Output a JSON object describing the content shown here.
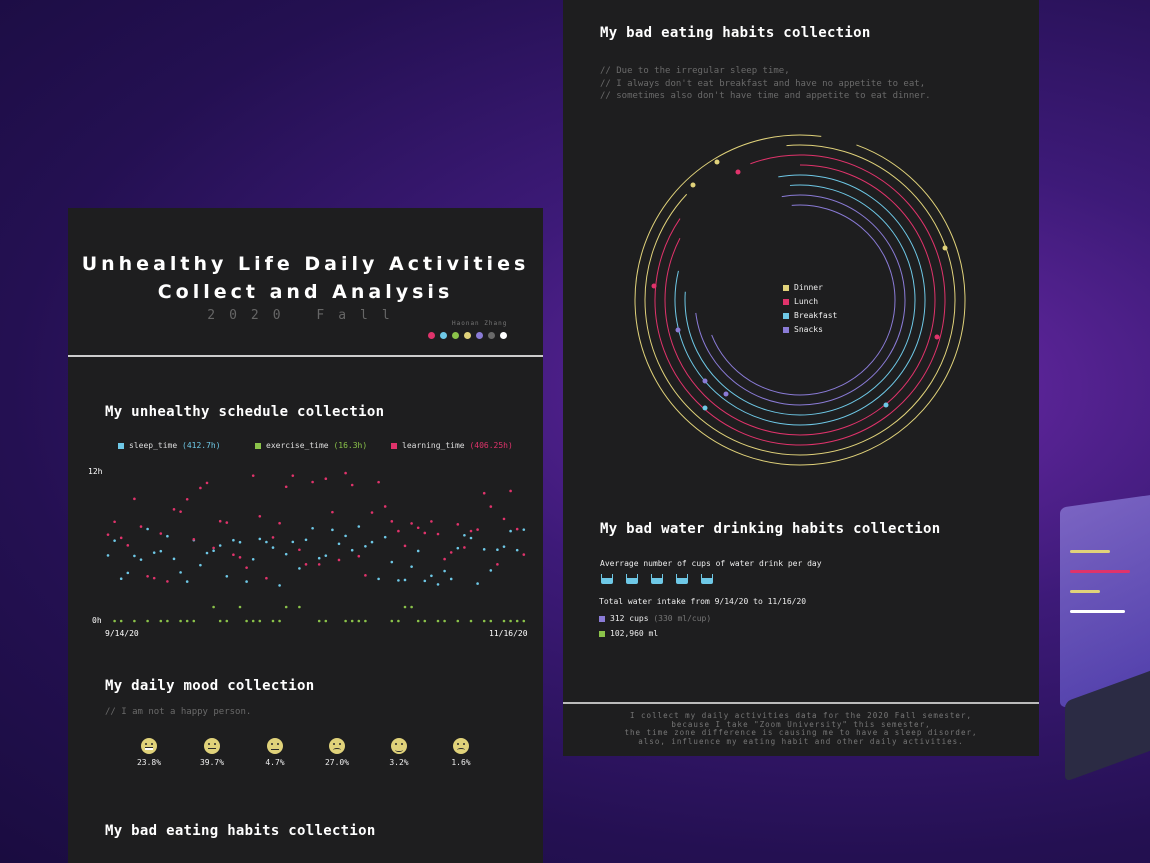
{
  "left": {
    "title_line1": "Unhealthy Life Daily Activities",
    "title_line2": "Collect and Analysis",
    "subtitle": "2020 Fall",
    "author": "Haonan Zhang",
    "palette": [
      "#e0336b",
      "#6ec8e6",
      "#8bc34a",
      "#e0d27a",
      "#8a7bd6",
      "#6a6a6a",
      "#ffffff"
    ],
    "schedule": {
      "title": "My unhealthy schedule collection",
      "legend": [
        {
          "label": "sleep_time",
          "value": "(412.7h)",
          "color": "#6ec8e6"
        },
        {
          "label": "exercise_time",
          "value": "(16.3h)",
          "color": "#8bc34a"
        },
        {
          "label": "learning_time",
          "value": "(406.25h)",
          "color": "#e0336b"
        }
      ],
      "y_top": "12h",
      "y_bottom": "0h",
      "x_start": "9/14/20",
      "x_end": "11/16/20"
    },
    "mood": {
      "title": "My daily mood collection",
      "comment": "// I am not a happy person.",
      "items": [
        {
          "pct": "23.8%",
          "face": "grin-icon"
        },
        {
          "pct": "39.7%",
          "face": "neutral-icon"
        },
        {
          "pct": "4.7%",
          "face": "unamused-icon"
        },
        {
          "pct": "27.0%",
          "face": "frown-icon"
        },
        {
          "pct": "3.2%",
          "face": "relieved-icon"
        },
        {
          "pct": "1.6%",
          "face": "tired-icon"
        }
      ]
    },
    "eating_title": "My bad eating habits collection"
  },
  "right": {
    "eating": {
      "title": "My bad eating habits collection",
      "comment1": "// Due to the irregular sleep time,",
      "comment2": "// I always don't eat breakfast and have no appetite to eat,",
      "comment3": "// sometimes also don't have time and appetite to eat dinner.",
      "legend": [
        {
          "label": "Dinner",
          "color": "#e0d27a"
        },
        {
          "label": "Lunch",
          "color": "#e0336b"
        },
        {
          "label": "Breakfast",
          "color": "#6ec8e6"
        },
        {
          "label": "Snacks",
          "color": "#8a7bd6"
        }
      ]
    },
    "water": {
      "title": "My bad water drinking habits collection",
      "avg_label": "Averrage number of cups of water drink per day",
      "total_label": "Total water intake from 9/14/20 to 11/16/20",
      "cups": "312 cups",
      "cups_note": "(330 ml/cup)",
      "ml": "102,960 ml",
      "cups_color": "#8a7bd6",
      "ml_color": "#8bc34a"
    },
    "footer": {
      "line1": "I collect my daily activities data for the 2020 Fall semester,",
      "line2": "because I take \"Zoom University\" this semester,",
      "line3": "the time zone difference is causing me to have a sleep disorder,",
      "line4": "also, influence my eating habit and other daily activities."
    }
  }
}
